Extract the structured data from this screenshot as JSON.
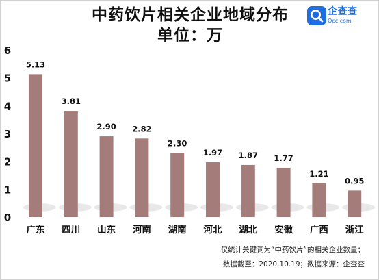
{
  "title": "中药饮片相关企业地域分布",
  "subtitle": "单位：万",
  "logo": {
    "name": "企查查",
    "domain": "Qcc.com"
  },
  "notes": [
    "仅统计关键词为“中药饮片”的相关企业数量；",
    "数据截至：2020.10.19；数据来源：企查查"
  ],
  "colors": {
    "bar": "#a47c7a",
    "text": "#111111",
    "brand": "#1f6fe0"
  },
  "chart_data": {
    "type": "bar",
    "title": "中药饮片相关企业地域分布",
    "subtitle": "单位：万",
    "categories": [
      "广东",
      "四川",
      "山东",
      "河南",
      "湖南",
      "河北",
      "湖北",
      "安徽",
      "广西",
      "浙江"
    ],
    "values": [
      5.13,
      3.81,
      2.9,
      2.82,
      2.3,
      1.97,
      1.87,
      1.77,
      1.21,
      0.95
    ],
    "value_labels": [
      "5.13",
      "3.81",
      "2.90",
      "2.82",
      "2.30",
      "1.97",
      "1.87",
      "1.77",
      "1.21",
      "0.95"
    ],
    "yticks": [
      "0",
      "1",
      "2",
      "3",
      "4",
      "5",
      "6"
    ],
    "ylim": [
      0,
      6
    ],
    "xlabel": "",
    "ylabel": "",
    "grid": false,
    "legend": "none"
  }
}
